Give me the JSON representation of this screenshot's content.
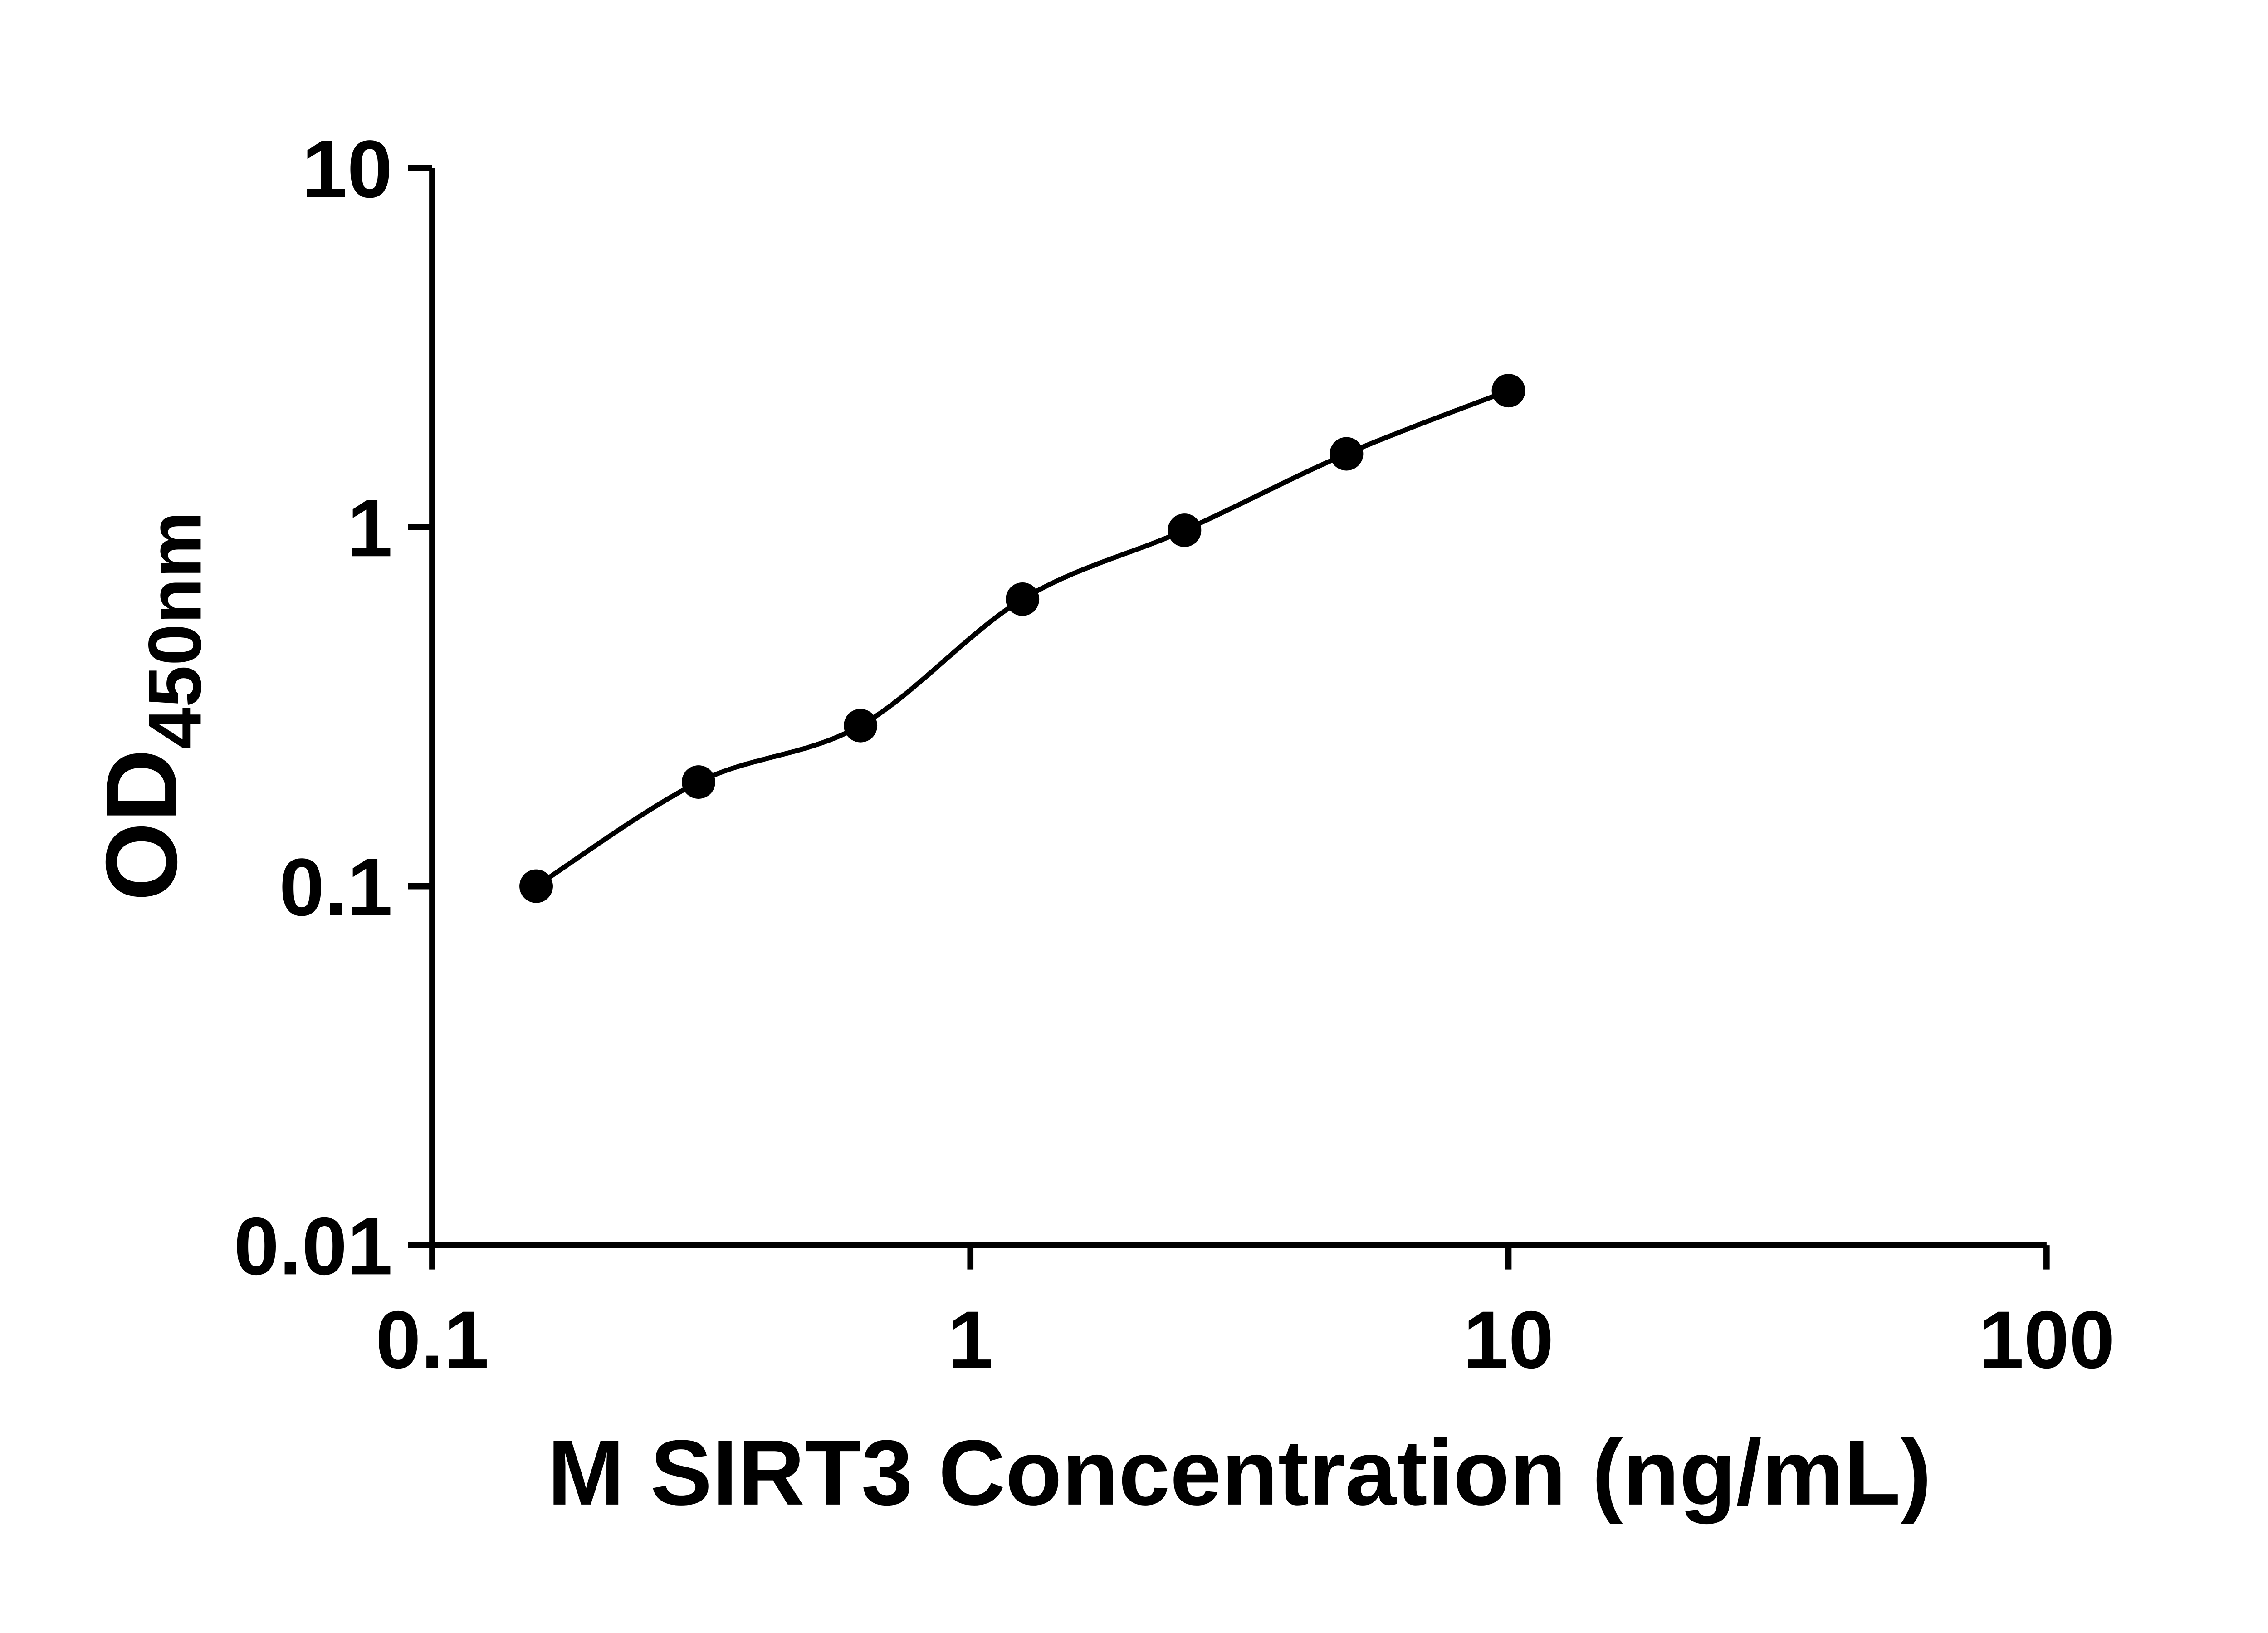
{
  "chart_data": {
    "type": "scatter",
    "title": "",
    "xlabel": "M SIRT3 Concentration (ng/mL)",
    "ylabel_main": "OD",
    "ylabel_sub": "450nm",
    "x_scale": "log10",
    "y_scale": "log10",
    "xlim": [
      0.1,
      100
    ],
    "ylim": [
      0.01,
      10
    ],
    "x_ticks": {
      "values": [
        0.1,
        1,
        10,
        100
      ],
      "labels": [
        "0.1",
        "1",
        "10",
        "100"
      ]
    },
    "y_ticks": {
      "values": [
        0.01,
        0.1,
        1,
        10
      ],
      "labels": [
        "0.01",
        "0.1",
        "1",
        "10"
      ]
    },
    "grid": false,
    "legend": false,
    "series": [
      {
        "x": [
          0.156,
          0.3125,
          0.625,
          1.25,
          2.5,
          5,
          10
        ],
        "y": [
          0.1,
          0.195,
          0.28,
          0.63,
          0.98,
          1.6,
          2.4
        ],
        "marker": "filled-circle",
        "line": "smooth",
        "color": "#000000"
      }
    ]
  },
  "colors": {
    "background": "#ffffff",
    "foreground": "#000000"
  }
}
